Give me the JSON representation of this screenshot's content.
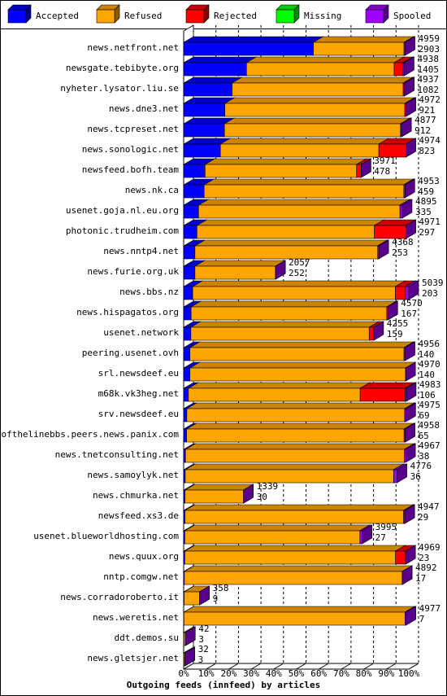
{
  "chart_data": {
    "type": "bar",
    "orientation": "horizontal",
    "stacked": true,
    "xlabel": "Outgoing feeds (innfeed) by articles",
    "categories": [
      "news.netfront.net",
      "newsgate.tebibyte.org",
      "nyheter.lysator.liu.se",
      "news.dne3.net",
      "news.tcpreset.net",
      "news.sonologic.net",
      "newsfeed.bofh.team",
      "news.nk.ca",
      "usenet.goja.nl.eu.org",
      "photonic.trudheim.com",
      "news.nntp4.net",
      "news.furie.org.uk",
      "news.bbs.nz",
      "news.hispagatos.org",
      "usenet.network",
      "peering.usenet.ovh",
      "srl.newsdeef.eu",
      "m68k.vk3heg.net",
      "srv.newsdeef.eu",
      "endofthelinebbs.peers.news.panix.com",
      "news.tnetconsulting.net",
      "news.samoylyk.net",
      "news.chmurka.net",
      "newsfeed.xs3.de",
      "usenet.blueworldhosting.com",
      "news.quux.org",
      "nntp.comgw.net",
      "news.corradoroberto.it",
      "news.weretis.net",
      "ddt.demos.su",
      "news.gletsjer.net"
    ],
    "series": [
      {
        "name": "Accepted",
        "color": "#0000ff",
        "values": [
          57.6,
          27.9,
          21.5,
          18.3,
          18.1,
          16.3,
          9.5,
          9.1,
          6.6,
          5.9,
          5.0,
          5.0,
          4.0,
          3.3,
          3.2,
          2.8,
          2.8,
          2.1,
          1.4,
          1.3,
          0.8,
          0.7,
          0.6,
          0.6,
          0.5,
          0.5,
          0.3,
          0.2,
          0.1,
          0.1,
          0.1
        ]
      },
      {
        "name": "Refused",
        "color": "#ffa500",
        "values": [
          40.3,
          65.6,
          76.0,
          79.9,
          78.2,
          70.4,
          67.3,
          88.7,
          89.5,
          78.8,
          81.2,
          35.8,
          90.0,
          86.9,
          79.2,
          95.1,
          95.8,
          76.3,
          96.8,
          96.6,
          97.3,
          92.6,
          26.0,
          97.1,
          77.8,
          93.6,
          96.8,
          6.9,
          98.2,
          0.7,
          0.5
        ]
      },
      {
        "name": "Rejected",
        "color": "#ff0000",
        "values": [
          0,
          4,
          0.5,
          0.5,
          0.5,
          12,
          2,
          0,
          0,
          14,
          0,
          0,
          4.5,
          0.5,
          2,
          0,
          0,
          20,
          0,
          0.5,
          0,
          0,
          0,
          0.5,
          0,
          4.5,
          0,
          0,
          0,
          0,
          0
        ]
      },
      {
        "name": "Missing",
        "color": "#00ff00",
        "values": [
          0,
          0,
          0,
          0,
          0,
          0,
          0,
          0,
          0,
          0,
          0,
          0,
          0,
          0,
          0,
          0,
          0,
          0,
          0,
          0,
          0,
          0,
          0,
          0,
          0,
          0,
          0,
          0,
          0,
          0,
          0
        ]
      },
      {
        "name": "Spooled",
        "color": "#a000ff",
        "values": [
          0.5,
          0.5,
          0,
          0,
          0,
          0,
          0,
          0.5,
          1,
          0,
          0.5,
          0,
          1.5,
          0,
          0,
          0.5,
          0,
          0.5,
          0.5,
          0,
          0.5,
          1.5,
          0,
          0,
          1,
          0,
          0,
          0,
          0.5,
          0,
          0
        ]
      }
    ],
    "row_labels": [
      [
        "4959",
        "2903"
      ],
      [
        "4938",
        "1405"
      ],
      [
        "4937",
        "1082"
      ],
      [
        "4972",
        "921"
      ],
      [
        "4877",
        "912"
      ],
      [
        "4974",
        "823"
      ],
      [
        "3971",
        "478"
      ],
      [
        "4953",
        "459"
      ],
      [
        "4895",
        "335"
      ],
      [
        "4971",
        "297"
      ],
      [
        "4368",
        "253"
      ],
      [
        "2057",
        "252"
      ],
      [
        "5039",
        "203"
      ],
      [
        "4570",
        "167"
      ],
      [
        "4255",
        "159"
      ],
      [
        "4956",
        "140"
      ],
      [
        "4970",
        "140"
      ],
      [
        "4983",
        "106"
      ],
      [
        "4975",
        "69"
      ],
      [
        "4958",
        "65"
      ],
      [
        "4967",
        "38"
      ],
      [
        "4776",
        "36"
      ],
      [
        "1339",
        "30"
      ],
      [
        "4947",
        "29"
      ],
      [
        "3995",
        "27"
      ],
      [
        "4969",
        "23"
      ],
      [
        "4892",
        "17"
      ],
      [
        "358",
        "9"
      ],
      [
        "4977",
        "7"
      ],
      [
        "42",
        "3"
      ],
      [
        "32",
        "3"
      ]
    ],
    "xlim": [
      0,
      100
    ],
    "xticks": [
      {
        "value": 0,
        "label": "0%"
      },
      {
        "value": 10,
        "label": "10%"
      },
      {
        "value": 20,
        "label": "20%"
      },
      {
        "value": 30,
        "label": "30%"
      },
      {
        "value": 40,
        "label": "40%"
      },
      {
        "value": 50,
        "label": "50%"
      },
      {
        "value": 60,
        "label": "60%"
      },
      {
        "value": 70,
        "label": "70%"
      },
      {
        "value": 80,
        "label": "80%"
      },
      {
        "value": 90,
        "label": "90%"
      },
      {
        "value": 100,
        "label": "100%"
      }
    ],
    "grid": true,
    "legend": "top"
  }
}
